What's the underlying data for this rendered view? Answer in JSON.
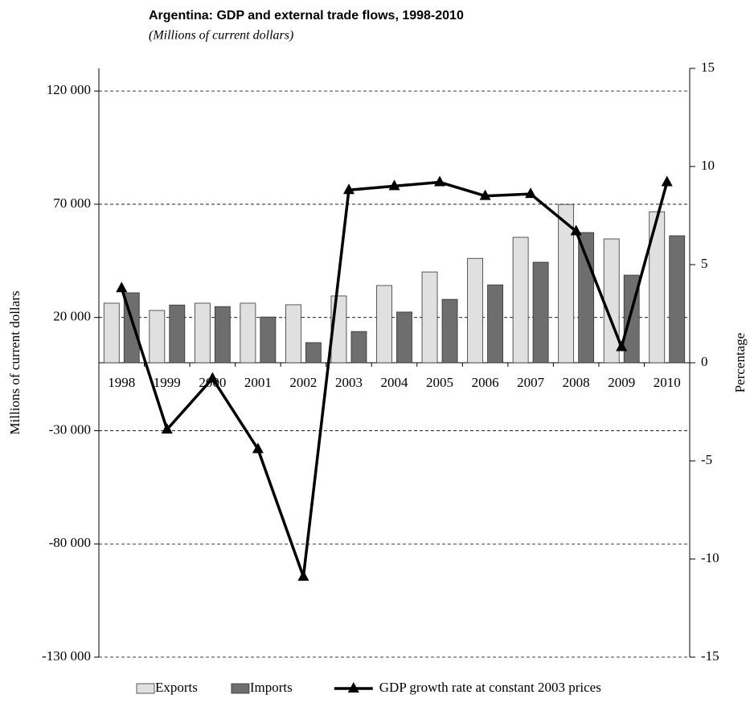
{
  "chart_data": {
    "type": "bar_line",
    "title": "Argentina: GDP and external trade flows, 1998-2010",
    "subtitle": "(Millions of current dollars)",
    "ylabel": "Millions of current dollars",
    "y2label": "Percentage",
    "categories": [
      "1998",
      "1999",
      "2000",
      "2001",
      "2002",
      "2003",
      "2004",
      "2005",
      "2006",
      "2007",
      "2008",
      "2009",
      "2010"
    ],
    "series": [
      {
        "name": "Exports",
        "type": "bar",
        "color": "#e0e0e0",
        "values": [
          26300,
          23100,
          26300,
          26300,
          25600,
          29500,
          34100,
          40100,
          46100,
          55400,
          69900,
          54700,
          66700
        ]
      },
      {
        "name": "Imports",
        "type": "bar",
        "color": "#6e6e6e",
        "values": [
          30900,
          25500,
          24800,
          20200,
          8900,
          13800,
          22400,
          28000,
          34400,
          44400,
          57500,
          38700,
          56100
        ]
      },
      {
        "name": "GDP growth rate at constant 2003 prices",
        "type": "line",
        "axis": "y2",
        "color": "#000000",
        "values": [
          3.8,
          -3.4,
          -0.8,
          -4.4,
          -10.9,
          8.8,
          9.0,
          9.2,
          8.5,
          8.6,
          6.7,
          0.8,
          9.2
        ]
      }
    ],
    "ylim": [
      -130000,
      130000
    ],
    "yticks": [
      {
        "value": -130000,
        "label": "-130 000"
      },
      {
        "value": -80000,
        "label": "-80 000"
      },
      {
        "value": -30000,
        "label": "-30 000"
      },
      {
        "value": 20000,
        "label": "20 000"
      },
      {
        "value": 70000,
        "label": "70 000"
      },
      {
        "value": 120000,
        "label": "120 000"
      }
    ],
    "y2lim": [
      -15,
      15
    ],
    "y2ticks": [
      -15,
      -10,
      -5,
      0,
      5,
      10,
      15
    ],
    "grid": true
  }
}
